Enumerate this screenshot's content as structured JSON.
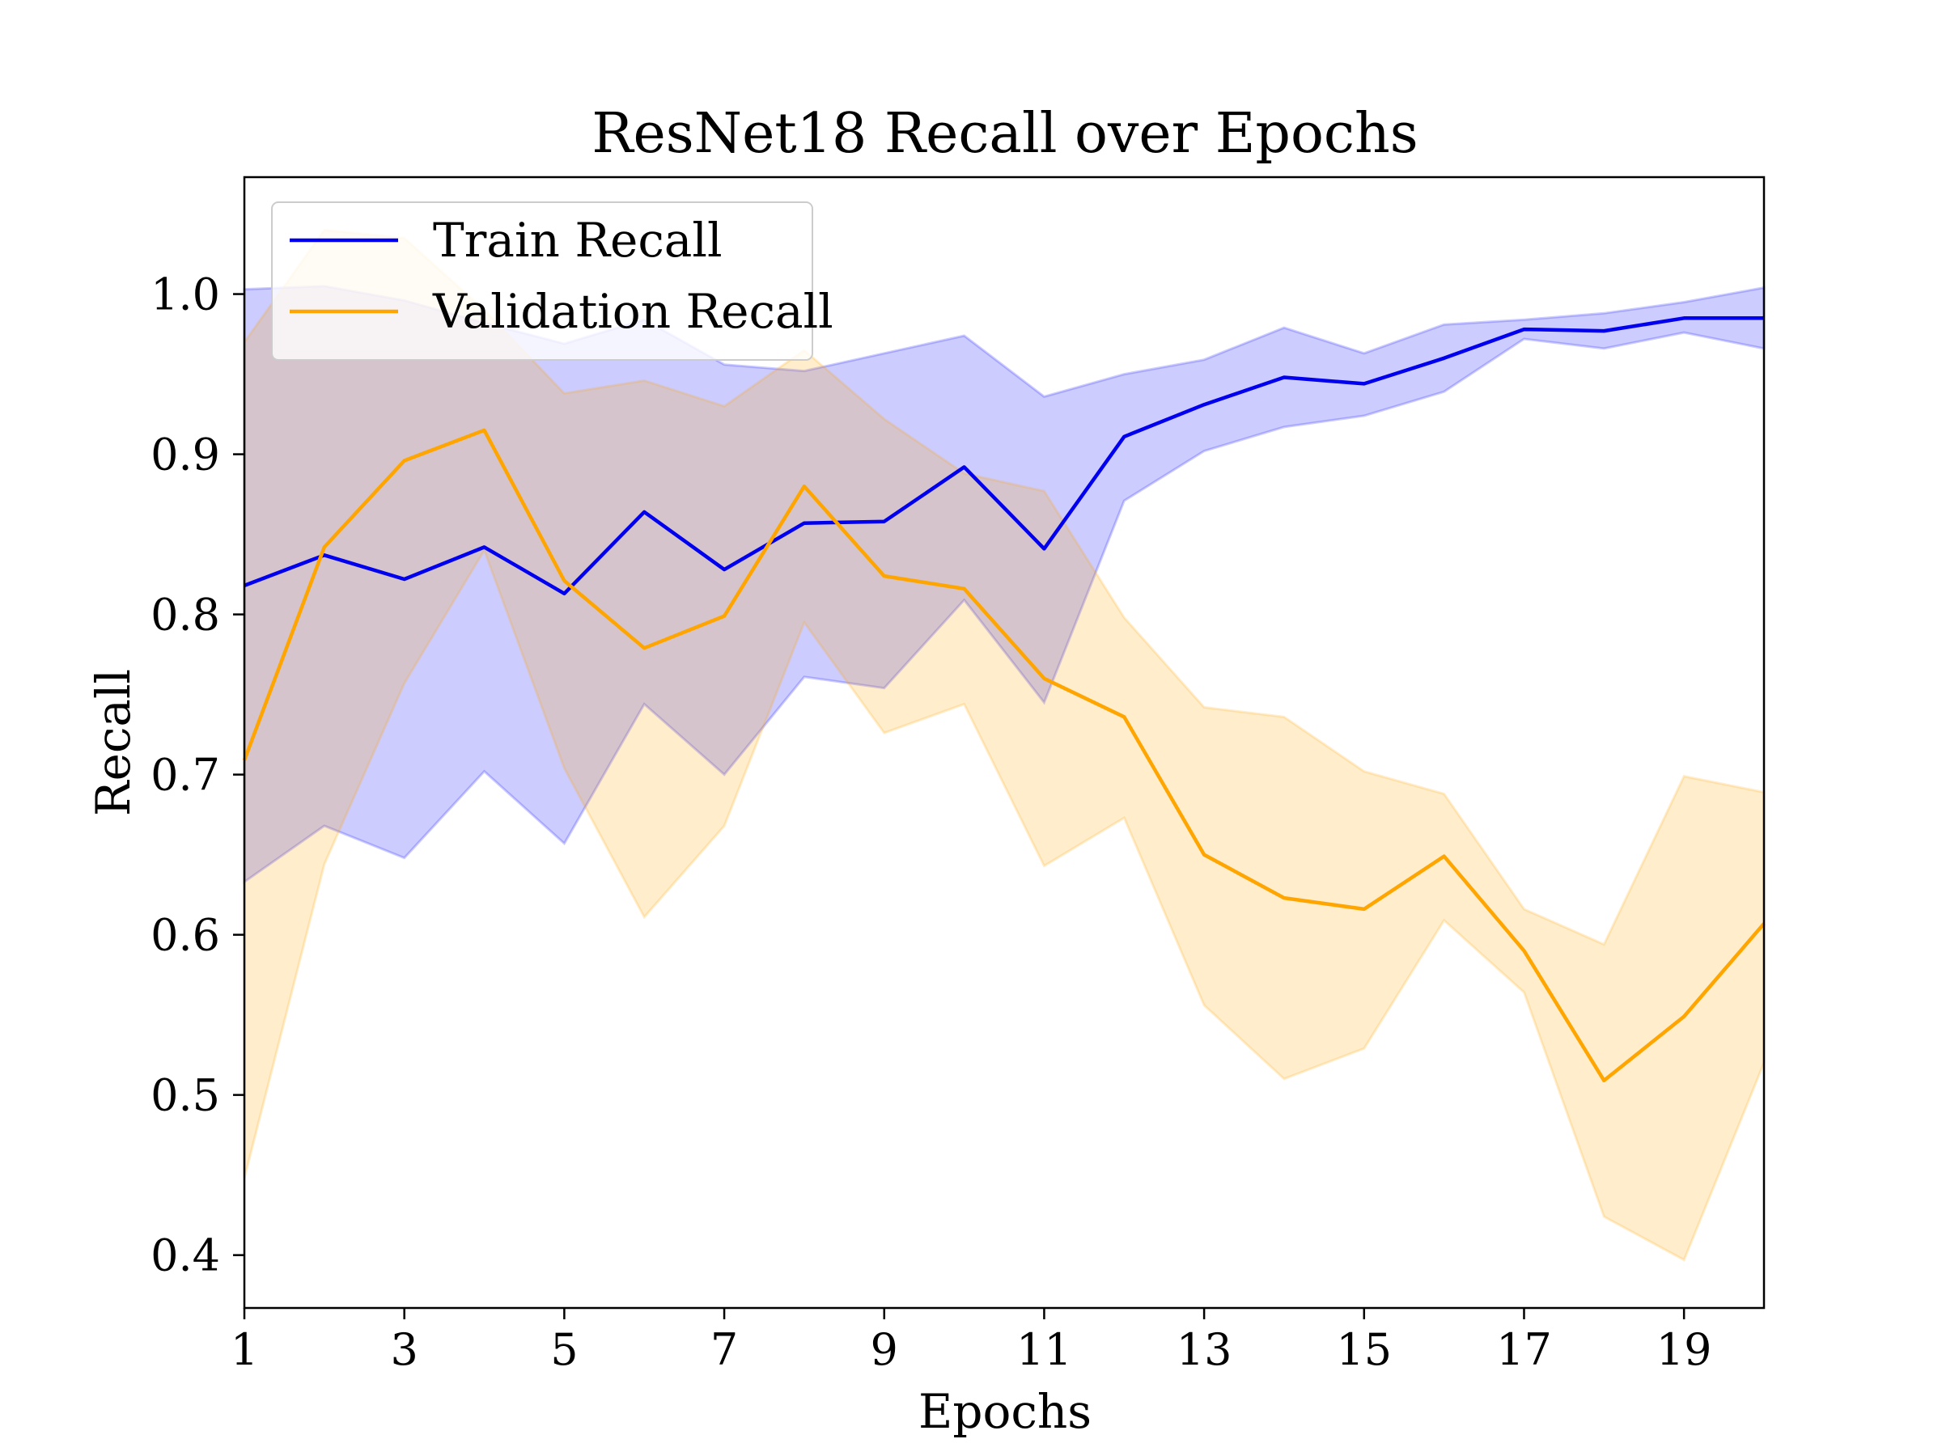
{
  "chart_data": {
    "type": "line",
    "title": "ResNet18 Recall over Epochs",
    "xlabel": "Epochs",
    "ylabel": "Recall",
    "xlim": [
      1,
      20
    ],
    "ylim": [
      0.367,
      1.073
    ],
    "xticks": [
      1,
      3,
      5,
      7,
      9,
      11,
      13,
      15,
      17,
      19
    ],
    "xtick_labels": [
      "1",
      "3",
      "5",
      "7",
      "9",
      "11",
      "13",
      "15",
      "17",
      "19"
    ],
    "yticks": [
      0.4,
      0.5,
      0.6,
      0.7,
      0.8,
      0.9,
      1.0
    ],
    "ytick_labels": [
      "0.4",
      "0.5",
      "0.6",
      "0.7",
      "0.8",
      "0.9",
      "1.0"
    ],
    "grid": false,
    "legend_position": "top-left",
    "x": [
      1,
      2,
      3,
      4,
      5,
      6,
      7,
      8,
      9,
      10,
      11,
      12,
      13,
      14,
      15,
      16,
      17,
      18,
      19,
      20
    ],
    "series": [
      {
        "name": "Train Recall",
        "color": "#0000ee",
        "band_color": "#0000ff",
        "values": [
          0.818,
          0.837,
          0.822,
          0.842,
          0.813,
          0.864,
          0.828,
          0.857,
          0.858,
          0.892,
          0.841,
          0.911,
          0.931,
          0.948,
          0.944,
          0.96,
          0.978,
          0.977,
          0.985,
          0.985
        ],
        "upper": [
          1.003,
          1.005,
          0.996,
          0.982,
          0.969,
          0.984,
          0.956,
          0.952,
          0.963,
          0.974,
          0.936,
          0.95,
          0.959,
          0.979,
          0.963,
          0.981,
          0.984,
          0.988,
          0.995,
          1.004
        ],
        "lower": [
          0.633,
          0.668,
          0.648,
          0.702,
          0.657,
          0.744,
          0.7,
          0.761,
          0.754,
          0.809,
          0.745,
          0.871,
          0.902,
          0.917,
          0.924,
          0.939,
          0.972,
          0.966,
          0.976,
          0.966
        ]
      },
      {
        "name": "Validation Recall",
        "color": "#ffa500",
        "band_color": "#ffa500",
        "values": [
          0.709,
          0.842,
          0.896,
          0.915,
          0.821,
          0.779,
          0.799,
          0.88,
          0.824,
          0.816,
          0.76,
          0.736,
          0.65,
          0.623,
          0.616,
          0.649,
          0.59,
          0.509,
          0.549,
          0.607
        ],
        "upper": [
          0.97,
          1.04,
          1.035,
          0.99,
          0.938,
          0.946,
          0.93,
          0.965,
          0.922,
          0.888,
          0.877,
          0.798,
          0.742,
          0.736,
          0.702,
          0.688,
          0.616,
          0.594,
          0.699,
          0.689
        ],
        "lower": [
          0.448,
          0.644,
          0.757,
          0.84,
          0.704,
          0.611,
          0.668,
          0.795,
          0.726,
          0.744,
          0.643,
          0.673,
          0.556,
          0.51,
          0.529,
          0.609,
          0.564,
          0.424,
          0.397,
          0.52
        ]
      }
    ]
  }
}
